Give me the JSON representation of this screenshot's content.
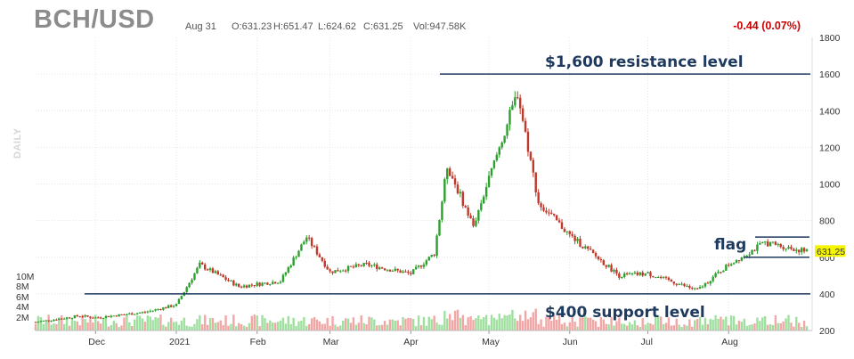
{
  "header": {
    "symbol": "BCH/USD",
    "date": "Aug 31",
    "open": "O:631.23",
    "high": "H:651.47",
    "low": "L:624.62",
    "close": "C:631.25",
    "volume": "Vol:947.58K",
    "change": "-0.44 (0.07%)"
  },
  "side_label": "DAILY",
  "colors": {
    "up": "#2ca02c",
    "down": "#c0392b",
    "vol_up": "#9fdf9f",
    "vol_down": "#f2a6a6",
    "annotation": "#1f3a5f",
    "change": "#cc0000",
    "last_price_bg": "#f5f500",
    "grid": "#e6e6e6"
  },
  "chart_data": {
    "type": "candlestick",
    "title": "BCH/USD",
    "ylim": [
      200,
      1800
    ],
    "yticks": [
      "1800",
      "1600",
      "1400",
      "1200",
      "1000",
      "800",
      "600",
      "400",
      "200"
    ],
    "xticks": [
      "Dec",
      "2021",
      "Feb",
      "Mar",
      "Apr",
      "May",
      "Jun",
      "Jul",
      "Aug"
    ],
    "volume_ticks": [
      "10M",
      "8M",
      "6M",
      "4M",
      "2M"
    ],
    "last_price": "631.25",
    "approx_close_path": [
      {
        "date": "2020-11-10",
        "close": 250
      },
      {
        "date": "2020-11-25",
        "close": 280
      },
      {
        "date": "2020-12-01",
        "close": 270
      },
      {
        "date": "2020-12-20",
        "close": 300
      },
      {
        "date": "2021-01-01",
        "close": 340
      },
      {
        "date": "2021-01-10",
        "close": 560
      },
      {
        "date": "2021-01-25",
        "close": 440
      },
      {
        "date": "2021-02-10",
        "close": 470
      },
      {
        "date": "2021-02-20",
        "close": 710
      },
      {
        "date": "2021-03-01",
        "close": 520
      },
      {
        "date": "2021-03-15",
        "close": 560
      },
      {
        "date": "2021-04-01",
        "close": 510
      },
      {
        "date": "2021-04-10",
        "close": 620
      },
      {
        "date": "2021-04-15",
        "close": 1100
      },
      {
        "date": "2021-04-25",
        "close": 770
      },
      {
        "date": "2021-05-05",
        "close": 1200
      },
      {
        "date": "2021-05-12",
        "close": 1500
      },
      {
        "date": "2021-05-20",
        "close": 900
      },
      {
        "date": "2021-06-01",
        "close": 720
      },
      {
        "date": "2021-06-20",
        "close": 500
      },
      {
        "date": "2021-07-01",
        "close": 510
      },
      {
        "date": "2021-07-20",
        "close": 420
      },
      {
        "date": "2021-08-01",
        "close": 560
      },
      {
        "date": "2021-08-15",
        "close": 680
      },
      {
        "date": "2021-08-31",
        "close": 631
      }
    ],
    "annotations": [
      {
        "text": "$1,600 resistance level",
        "level": 1600
      },
      {
        "text": "$400 support level",
        "level": 400
      },
      {
        "text": "flag",
        "upper": 710,
        "lower": 600
      }
    ]
  }
}
